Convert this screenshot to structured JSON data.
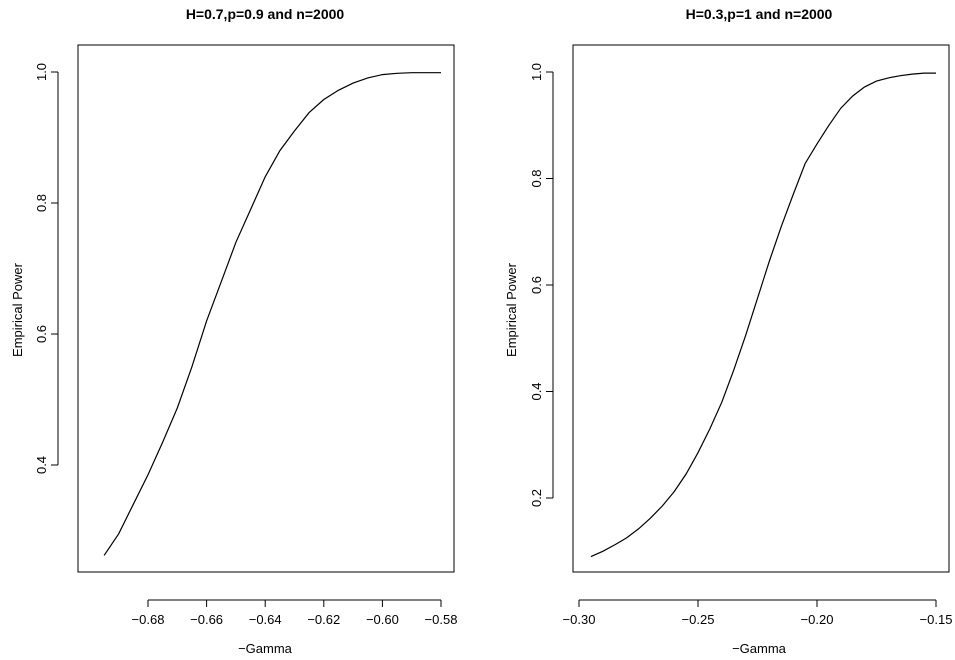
{
  "chart_data": [
    {
      "type": "line",
      "title": "H=0.7,p=0.9 and n=2000",
      "xlabel": "−Gamma",
      "ylabel": "Empirical Power",
      "xlim": [
        -0.695,
        -0.58
      ],
      "ylim": [
        0.26,
        1.0
      ],
      "xticks": [
        -0.68,
        -0.66,
        -0.64,
        -0.62,
        -0.6,
        -0.58
      ],
      "xtick_labels": [
        "−0.68",
        "−0.66",
        "−0.64",
        "−0.62",
        "−0.60",
        "−0.58"
      ],
      "yticks": [
        0.4,
        0.6,
        0.8,
        1.0
      ],
      "ytick_labels": [
        "0.4",
        "0.6",
        "0.8",
        "1.0"
      ],
      "grid": false,
      "x": [
        -0.695,
        -0.69,
        -0.685,
        -0.68,
        -0.675,
        -0.67,
        -0.665,
        -0.66,
        -0.655,
        -0.65,
        -0.645,
        -0.64,
        -0.635,
        -0.63,
        -0.625,
        -0.62,
        -0.615,
        -0.61,
        -0.605,
        -0.6,
        -0.595,
        -0.59,
        -0.585,
        -0.58
      ],
      "y": [
        0.262,
        0.295,
        0.34,
        0.385,
        0.435,
        0.487,
        0.55,
        0.62,
        0.68,
        0.74,
        0.79,
        0.84,
        0.88,
        0.91,
        0.938,
        0.958,
        0.972,
        0.983,
        0.991,
        0.996,
        0.998,
        0.999,
        0.999,
        0.999
      ]
    },
    {
      "type": "line",
      "title": "H=0.3,p=1 and n=2000",
      "xlabel": "−Gamma",
      "ylabel": "Empirical Power",
      "xlim": [
        -0.295,
        -0.15
      ],
      "ylim": [
        0.09,
        0.998
      ],
      "xticks": [
        -0.3,
        -0.25,
        -0.2,
        -0.15
      ],
      "xtick_labels": [
        "−0.30",
        "−0.25",
        "−0.20",
        "−0.15"
      ],
      "yticks": [
        0.2,
        0.4,
        0.6,
        0.8,
        1.0
      ],
      "ytick_labels": [
        "0.2",
        "0.4",
        "0.6",
        "0.8",
        "1.0"
      ],
      "grid": false,
      "x": [
        -0.295,
        -0.29,
        -0.285,
        -0.28,
        -0.275,
        -0.27,
        -0.265,
        -0.26,
        -0.255,
        -0.25,
        -0.245,
        -0.24,
        -0.235,
        -0.23,
        -0.225,
        -0.22,
        -0.215,
        -0.21,
        -0.205,
        -0.2,
        -0.195,
        -0.19,
        -0.185,
        -0.18,
        -0.175,
        -0.17,
        -0.165,
        -0.16,
        -0.155,
        -0.15
      ],
      "y": [
        0.09,
        0.1,
        0.112,
        0.125,
        0.142,
        0.162,
        0.185,
        0.212,
        0.245,
        0.285,
        0.33,
        0.38,
        0.44,
        0.505,
        0.575,
        0.645,
        0.71,
        0.77,
        0.828,
        0.865,
        0.9,
        0.932,
        0.955,
        0.972,
        0.983,
        0.989,
        0.993,
        0.996,
        0.998,
        0.998
      ]
    }
  ]
}
